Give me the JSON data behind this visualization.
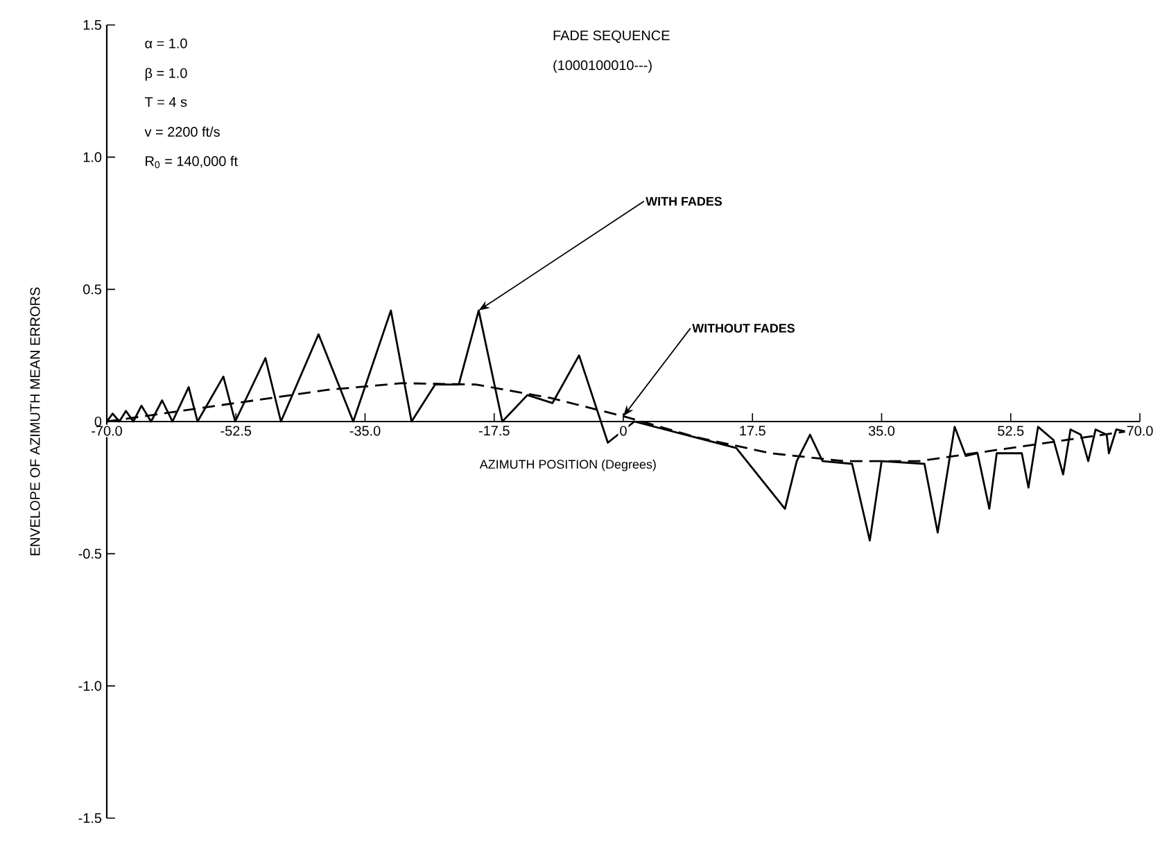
{
  "chart_data": {
    "type": "line",
    "xlabel": "AZIMUTH POSITION (Degrees)",
    "ylabel": "ENVELOPE OF AZIMUTH MEAN ERRORS",
    "xlim": [
      -70,
      70
    ],
    "ylim": [
      -1.5,
      1.5
    ],
    "xticks": [
      {
        "value": -70,
        "label": "-70.0"
      },
      {
        "value": -52.5,
        "label": "-52.5"
      },
      {
        "value": -35,
        "label": "-35.0"
      },
      {
        "value": -17.5,
        "label": "-17.5"
      },
      0,
      {
        "value": 17.5,
        "label": "17.5"
      },
      {
        "value": 35,
        "label": "35.0"
      },
      {
        "value": 52.5,
        "label": "52.5"
      },
      {
        "value": 70,
        "label": "70.0"
      }
    ],
    "yticks": [
      {
        "value": -1.5,
        "label": "-1.5"
      },
      {
        "value": -1,
        "label": "-1.0"
      },
      {
        "value": -0.5,
        "label": "-0.5"
      },
      0,
      {
        "value": 0.5,
        "label": "0.5"
      },
      {
        "value": 1,
        "label": "1.0"
      },
      {
        "value": 1.5,
        "label": "1.5"
      }
    ],
    "annotations": [
      "α = 1.0",
      "β = 1.0",
      "T = 4 s",
      "v = 2200 ft/s",
      "R$_{0}$ = 140,000 ft",
      "FADE SEQUENCE",
      "(1000100010---)"
    ],
    "marker": "none",
    "legend": false,
    "grid": false,
    "series": [
      {
        "name": "WITH FADES",
        "color": "#000000",
        "line_style": "solid",
        "x": [
          -70,
          -69.2,
          -68.3,
          -67.4,
          -66.4,
          -65.3,
          -64,
          -62.5,
          -61.1,
          -58.9,
          -57.7,
          -54.2,
          -52.6,
          -48.5,
          -46.4,
          -41.3,
          -36.6,
          -31.5,
          -28.7,
          -25.5,
          -22.3,
          -19.6,
          -16.4,
          -13,
          -9.6,
          -6,
          -2.1,
          1.5,
          15.3,
          21.9,
          23.5,
          25.3,
          27,
          31,
          33.4,
          35,
          40.8,
          42.6,
          44.9,
          46.4,
          48,
          49.6,
          50.6,
          54,
          54.9,
          56.2,
          58.3,
          59.6,
          60.6,
          62,
          63,
          64,
          65.5,
          65.8,
          66.8,
          68.5
        ],
        "values": [
          0,
          0.03,
          0,
          0.04,
          0,
          0.06,
          0,
          0.08,
          0,
          0.13,
          0,
          0.17,
          0,
          0.24,
          0,
          0.33,
          0,
          0.42,
          0,
          0.14,
          0.14,
          0.42,
          0,
          0.1,
          0.07,
          0.25,
          -0.08,
          0,
          -0.1,
          -0.33,
          -0.15,
          -0.05,
          -0.15,
          -0.16,
          -0.45,
          -0.15,
          -0.16,
          -0.42,
          -0.02,
          -0.13,
          -0.12,
          -0.33,
          -0.12,
          -0.12,
          -0.25,
          -0.02,
          -0.07,
          -0.2,
          -0.03,
          -0.05,
          -0.15,
          -0.03,
          -0.05,
          -0.12,
          -0.03,
          -0.04
        ]
      },
      {
        "name": "WITHOUT FADES",
        "color": "#000000",
        "line_style": "dashed",
        "x": [
          -70,
          -60,
          -50,
          -40,
          -30,
          -20,
          -10,
          0,
          10,
          20,
          30,
          40,
          50,
          60,
          70
        ],
        "values": [
          0,
          0.04,
          0.08,
          0.12,
          0.145,
          0.14,
          0.09,
          0.02,
          -0.06,
          -0.12,
          -0.15,
          -0.15,
          -0.11,
          -0.07,
          -0.03
        ]
      }
    ]
  }
}
